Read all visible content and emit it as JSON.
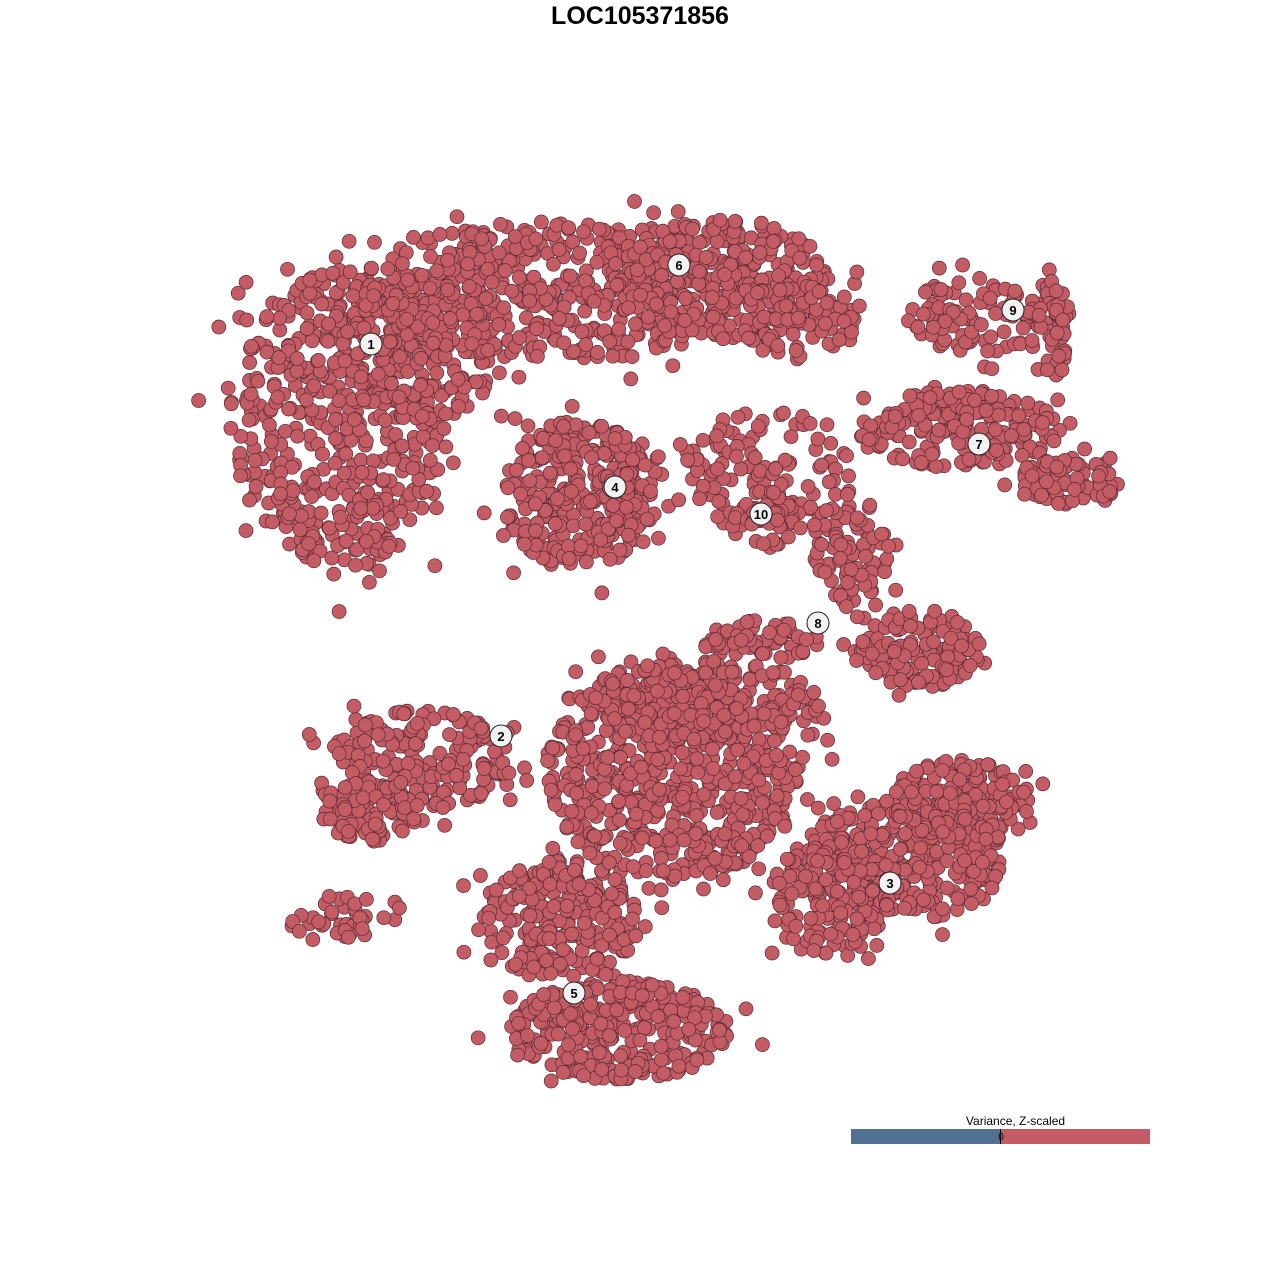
{
  "chart_data": {
    "type": "scatter",
    "title": "LOC105371856",
    "xlabel": "",
    "ylabel": "",
    "xlim": [
      -64,
      64
    ],
    "ylim": [
      -64,
      64
    ],
    "axes_visible": false,
    "grid": false,
    "point_color": "#c45c66",
    "point_stroke": "#5a2a30",
    "clusters": [
      {
        "label": "1",
        "center": [
          -26.9,
          29.6
        ],
        "blobs": [
          [
            -30,
            22,
            11,
            15,
            520
          ],
          [
            -22,
            30,
            9,
            8,
            200
          ]
        ]
      },
      {
        "label": "2",
        "center": [
          -13.9,
          -9.6
        ],
        "blobs": [
          [
            -22,
            -12,
            9,
            5,
            200
          ],
          [
            -27,
            -17,
            5,
            3,
            90
          ],
          [
            -30,
            -28,
            5,
            2.5,
            40
          ]
        ]
      },
      {
        "label": "3",
        "center": [
          25.0,
          -24.3
        ],
        "blobs": [
          [
            26,
            -22,
            11,
            6,
            330
          ],
          [
            32,
            -16,
            7,
            4,
            160
          ],
          [
            19,
            -26,
            6,
            6,
            150
          ]
        ]
      },
      {
        "label": "4",
        "center": [
          -2.5,
          15.3
        ],
        "blobs": [
          [
            -6.2,
            14.5,
            7.5,
            7.5,
            330
          ]
        ]
      },
      {
        "label": "5",
        "center": [
          -6.6,
          -35.3
        ],
        "blobs": [
          [
            -8,
            -28,
            8,
            6,
            250
          ],
          [
            -2,
            -39,
            11,
            5,
            330
          ]
        ]
      },
      {
        "label": "6",
        "center": [
          3.9,
          37.5
        ],
        "blobs": [
          [
            -8,
            35,
            20,
            7,
            520
          ],
          [
            8,
            36,
            11,
            6,
            260
          ],
          [
            16,
            32,
            6,
            4,
            90
          ]
        ]
      },
      {
        "label": "7",
        "center": [
          33.9,
          19.6
        ],
        "blobs": [
          [
            32,
            21,
            10,
            4,
            200
          ],
          [
            43,
            16,
            5,
            2.5,
            80
          ]
        ]
      },
      {
        "label": "8",
        "center": [
          17.8,
          1.7
        ],
        "blobs": [
          [
            21,
            9,
            4,
            6,
            90
          ],
          [
            28,
            -1,
            6,
            4,
            150
          ],
          [
            12,
            0,
            6,
            2,
            60
          ]
        ]
      },
      {
        "label": "9",
        "center": [
          37.3,
          33.0
        ],
        "blobs": [
          [
            35,
            32.5,
            8,
            4,
            110
          ],
          [
            41,
            31,
            2,
            5,
            40
          ]
        ]
      },
      {
        "label": "10",
        "center": [
          12.1,
          12.6
        ],
        "blobs": [
          [
            12,
            17,
            8,
            6,
            120
          ],
          [
            12.5,
            12,
            3,
            3,
            40
          ]
        ]
      }
    ],
    "central_mass": {
      "blobs": [
        [
          3,
          -14,
          13,
          10,
          600
        ],
        [
          6,
          -6,
          12,
          4,
          250
        ]
      ]
    },
    "legend": {
      "title": "Variance, Z-scaled",
      "tick_label": "0",
      "low_color": "#506f91",
      "high_color": "#c45c68",
      "placement": "bottom-right"
    }
  }
}
